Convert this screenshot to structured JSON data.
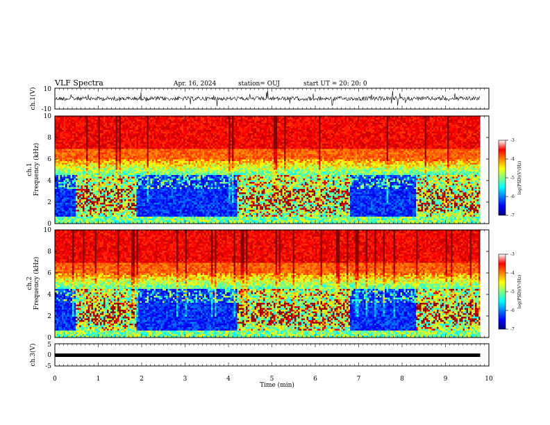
{
  "header": {
    "title": "VLF Spectra",
    "date": "Apr. 16, 2024",
    "station": "station= OUJ",
    "start": "start  UT  =   20: 20: 0"
  },
  "chart_data": [
    {
      "type": "line",
      "panel": "ch1-waveform",
      "ylabel": "ch.1(V)",
      "ylim": [
        -10,
        10
      ],
      "yticks": [
        "10",
        "-10"
      ],
      "xlim": [
        0,
        10
      ],
      "description_series": "noisy VLF waveform, amplitude about ±2 V with spikes to ±8 V",
      "data_end_min": 9.8
    },
    {
      "type": "heatmap",
      "panel": "ch1-spectrogram",
      "xlabel": "Time  (min)",
      "ylabel": "ch.1 Frequency  (kHz)",
      "ylabel_line1": "ch.1",
      "ylabel_line2": "Frequency  (kHz)",
      "xlim": [
        0,
        10
      ],
      "ylim": [
        0,
        10
      ],
      "yticks": [
        "0",
        "2",
        "4",
        "6",
        "8",
        "10"
      ],
      "colorbar": {
        "label": "log(PSD)(V²/Hz)",
        "range": [
          -7,
          -3
        ],
        "ticks": [
          "-3",
          "-4",
          "-5",
          "-6",
          "-7"
        ]
      },
      "blocks": [
        {
          "t0": 0.0,
          "t1": 0.5,
          "mode": "quiet"
        },
        {
          "t0": 0.5,
          "t1": 1.9,
          "mode": "active"
        },
        {
          "t0": 1.9,
          "t1": 4.2,
          "mode": "quiet"
        },
        {
          "t0": 4.2,
          "t1": 6.8,
          "mode": "active"
        },
        {
          "t0": 6.8,
          "t1": 8.3,
          "mode": "quiet"
        },
        {
          "t0": 8.3,
          "t1": 9.8,
          "mode": "active"
        }
      ]
    },
    {
      "type": "heatmap",
      "panel": "ch2-spectrogram",
      "ylabel": "ch.2 Frequency  (kHz)",
      "ylabel_line1": "ch.2",
      "ylabel_line2": "Frequency  (kHz)",
      "xlim": [
        0,
        10
      ],
      "ylim": [
        0,
        10
      ],
      "yticks": [
        "0",
        "2",
        "4",
        "6",
        "8",
        "10"
      ],
      "colorbar": {
        "label": "log(PSD)(V²/Hz)",
        "range": [
          -7,
          -3
        ],
        "ticks": [
          "-3",
          "-4",
          "-5",
          "-6",
          "-7"
        ]
      },
      "blocks": [
        {
          "t0": 0.0,
          "t1": 0.5,
          "mode": "quiet"
        },
        {
          "t0": 0.5,
          "t1": 1.9,
          "mode": "active"
        },
        {
          "t0": 1.9,
          "t1": 4.2,
          "mode": "quiet"
        },
        {
          "t0": 4.2,
          "t1": 6.8,
          "mode": "active"
        },
        {
          "t0": 6.8,
          "t1": 8.3,
          "mode": "quiet"
        },
        {
          "t0": 8.3,
          "t1": 9.8,
          "mode": "active"
        }
      ]
    },
    {
      "type": "line",
      "panel": "ch3-waveform",
      "ylabel": "ch.3(V)",
      "ylim": [
        -5,
        5
      ],
      "yticks": [
        "5",
        "0",
        "-5"
      ],
      "xlim": [
        0,
        10
      ],
      "xlabel": "Time  (min)",
      "xticks": [
        "0",
        "1",
        "2",
        "3",
        "4",
        "5",
        "6",
        "7",
        "8",
        "9",
        "10"
      ],
      "series": [
        {
          "values_constant": -0.5
        }
      ]
    }
  ]
}
